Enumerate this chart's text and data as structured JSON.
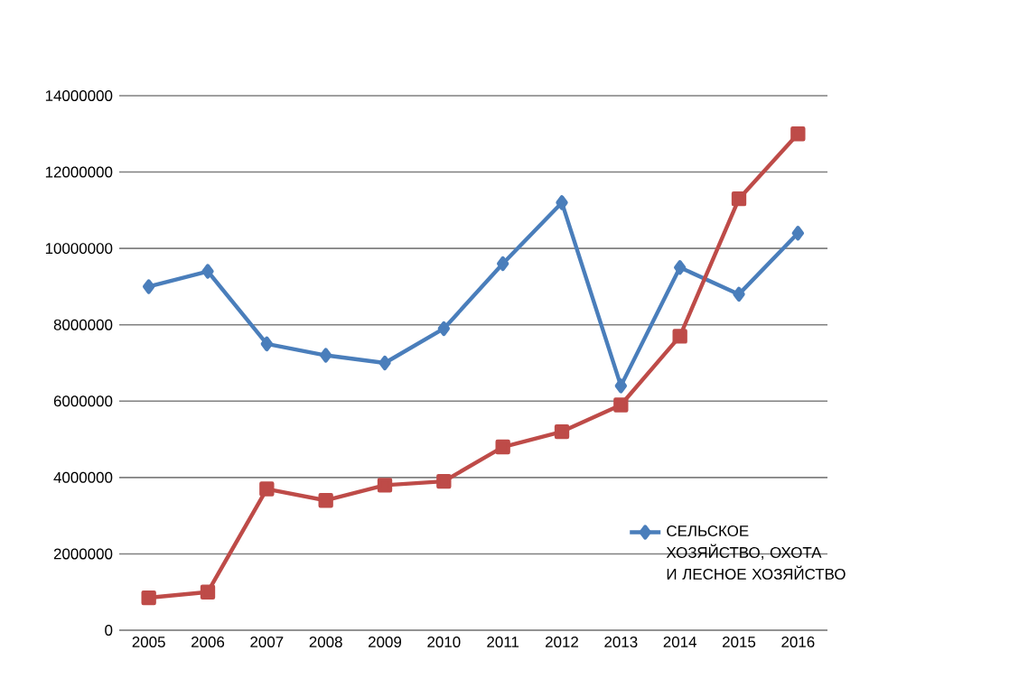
{
  "chart_data": {
    "type": "line",
    "categories": [
      "2005",
      "2006",
      "2007",
      "2008",
      "2009",
      "2010",
      "2011",
      "2012",
      "2013",
      "2014",
      "2015",
      "2016"
    ],
    "series": [
      {
        "name": "СЕЛЬСКОЕ ХОЗЯЙСТВО, ОХОТА И ЛЕСНОЕ ХОЗЯЙСТВО",
        "color": "#4a7ebb",
        "marker": "diamond",
        "values": [
          9000000,
          9400000,
          7500000,
          7200000,
          7000000,
          7900000,
          9600000,
          11200000,
          6400000,
          9500000,
          8800000,
          10400000
        ]
      },
      {
        "color": "#be4b48",
        "marker": "square",
        "values": [
          850000,
          1000000,
          3700000,
          3400000,
          3800000,
          3900000,
          4800000,
          5200000,
          5900000,
          7700000,
          11300000,
          13000000
        ]
      }
    ],
    "ylim": [
      0,
      14000000
    ],
    "yticks": [
      0,
      2000000,
      4000000,
      6000000,
      8000000,
      10000000,
      12000000,
      14000000
    ],
    "grid": "y",
    "legend": "bottom right",
    "line_style": "solid"
  }
}
